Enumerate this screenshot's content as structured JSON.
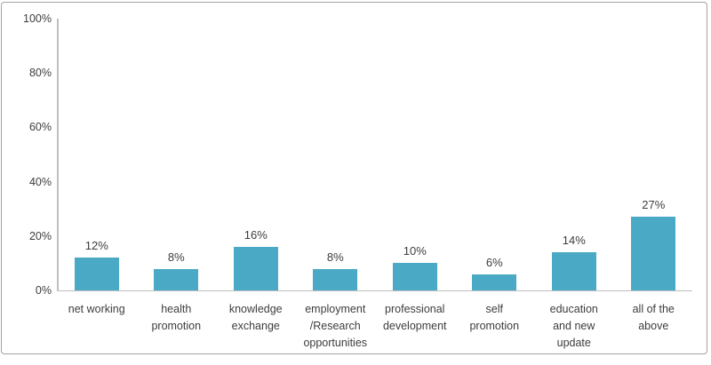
{
  "chart_data": {
    "type": "bar",
    "title": "",
    "xlabel": "",
    "ylabel": "",
    "ylim": [
      0,
      100
    ],
    "grid": false,
    "legend": "none",
    "yticks": [
      "0%",
      "20%",
      "40%",
      "60%",
      "80%",
      "100%"
    ],
    "ytick_values": [
      0,
      20,
      40,
      60,
      80,
      100
    ],
    "categories": [
      "net working",
      "health\npromotion",
      "knowledge\nexchange",
      "employment\n/Research\nopportunities",
      "professional\ndevelopment",
      "self\npromotion",
      "education\nand new\nupdate",
      "all of the\nabove"
    ],
    "values": [
      12,
      8,
      16,
      8,
      10,
      6,
      14,
      27
    ],
    "value_labels": [
      "12%",
      "8%",
      "16%",
      "8%",
      "10%",
      "6%",
      "14%",
      "27%"
    ]
  },
  "colors": {
    "bar_fill": "#4aa9c5",
    "axis_line": "#bfbfbf",
    "frame_border": "#a3a3a3",
    "text": "#3d3d3d",
    "background": "#ffffff"
  }
}
